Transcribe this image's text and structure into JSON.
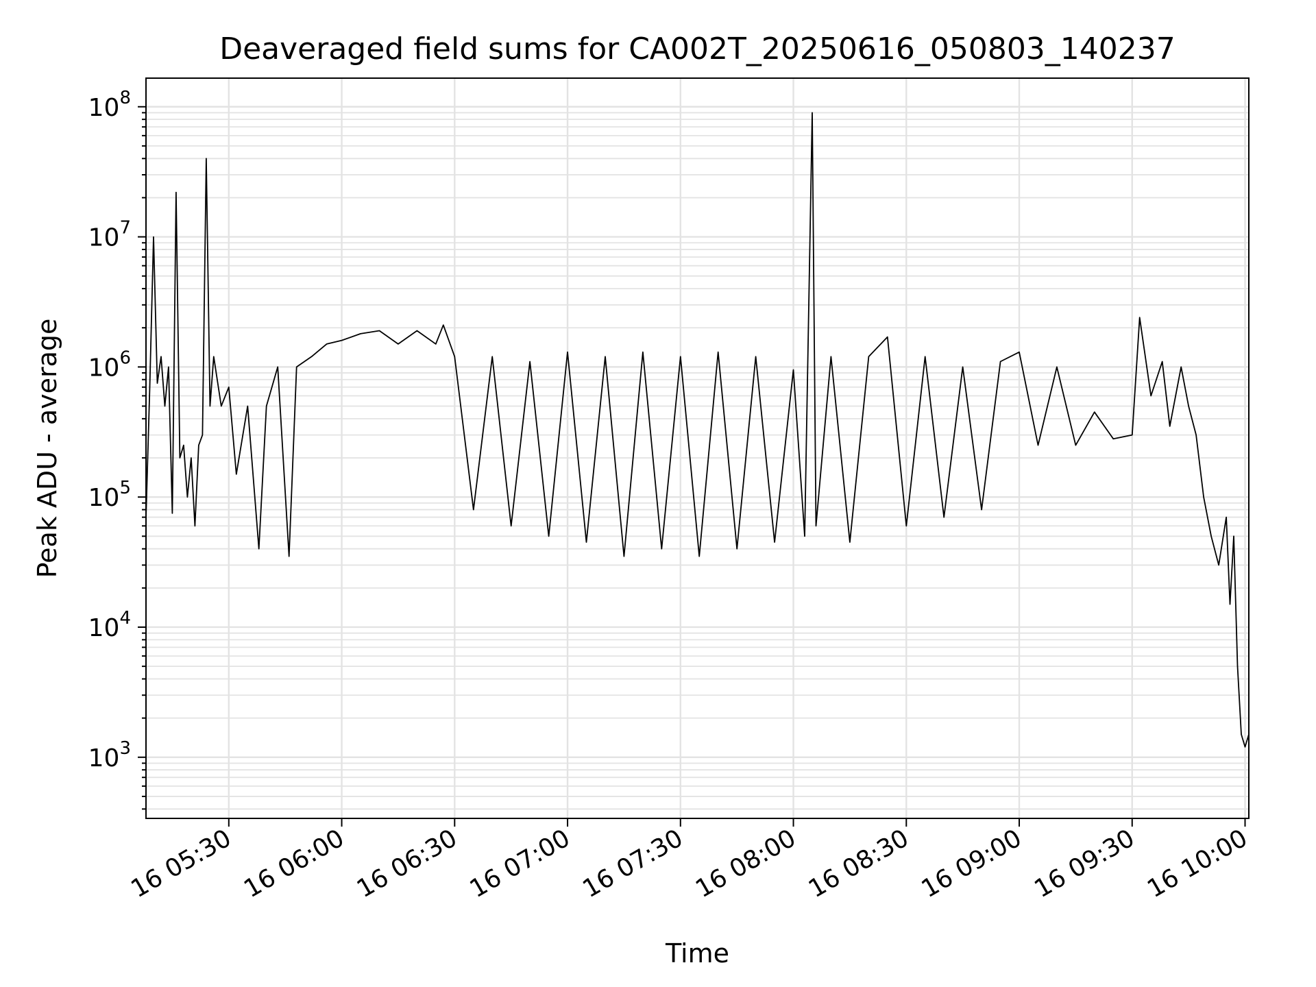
{
  "chart_data": {
    "type": "line",
    "title": "Deaveraged field sums for CA002T_20250616_050803_140237",
    "xlabel": "Time",
    "ylabel": "Peak ADU - average",
    "yscale": "log",
    "grid": true,
    "line_color": "#000000",
    "grid_color": "#e3e3e3",
    "xlim": [
      "16 05:08",
      "16 10:01"
    ],
    "ylim_exponent": [
      2.53,
      8.22
    ],
    "x_ticks": [
      "16 05:30",
      "16 06:00",
      "16 06:30",
      "16 07:00",
      "16 07:30",
      "16 08:00",
      "16 08:30",
      "16 09:00",
      "16 09:30",
      "16 10:00"
    ],
    "y_ticks": [
      {
        "base": "10",
        "exp": "3"
      },
      {
        "base": "10",
        "exp": "4"
      },
      {
        "base": "10",
        "exp": "5"
      },
      {
        "base": "10",
        "exp": "6"
      },
      {
        "base": "10",
        "exp": "7"
      },
      {
        "base": "10",
        "exp": "8"
      }
    ],
    "series": [
      {
        "x": [
          "16 05:08",
          "16 05:09",
          "16 05:10",
          "16 05:11",
          "16 05:12",
          "16 05:13",
          "16 05:14",
          "16 05:15",
          "16 05:16",
          "16 05:17",
          "16 05:18",
          "16 05:19",
          "16 05:20",
          "16 05:21",
          "16 05:22",
          "16 05:23",
          "16 05:24",
          "16 05:25",
          "16 05:26",
          "16 05:28",
          "16 05:30",
          "16 05:32",
          "16 05:35",
          "16 05:38",
          "16 05:40",
          "16 05:43",
          "16 05:46",
          "16 05:48",
          "16 05:52",
          "16 05:56",
          "16 06:00",
          "16 06:05",
          "16 06:10",
          "16 06:15",
          "16 06:20",
          "16 06:25",
          "16 06:27",
          "16 06:30",
          "16 06:35",
          "16 06:40",
          "16 06:45",
          "16 06:50",
          "16 06:55",
          "16 07:00",
          "16 07:05",
          "16 07:10",
          "16 07:15",
          "16 07:20",
          "16 07:25",
          "16 07:30",
          "16 07:35",
          "16 07:40",
          "16 07:45",
          "16 07:50",
          "16 07:55",
          "16 08:00",
          "16 08:03",
          "16 08:05",
          "16 08:06",
          "16 08:10",
          "16 08:15",
          "16 08:20",
          "16 08:25",
          "16 08:30",
          "16 08:35",
          "16 08:40",
          "16 08:45",
          "16 08:50",
          "16 08:55",
          "16 09:00",
          "16 09:05",
          "16 09:10",
          "16 09:15",
          "16 09:20",
          "16 09:25",
          "16 09:30",
          "16 09:32",
          "16 09:35",
          "16 09:38",
          "16 09:40",
          "16 09:43",
          "16 09:45",
          "16 09:47",
          "16 09:49",
          "16 09:51",
          "16 09:53",
          "16 09:55",
          "16 09:56",
          "16 09:57",
          "16 09:58",
          "16 09:59",
          "16 10:00",
          "16 10:01"
        ],
        "y": [
          70000.0,
          700000.0,
          10000000.0,
          750000.0,
          1200000.0,
          500000.0,
          1000000.0,
          75000.0,
          22000000.0,
          200000.0,
          250000.0,
          100000.0,
          200000.0,
          60000.0,
          250000.0,
          300000.0,
          40000000.0,
          500000.0,
          1200000.0,
          500000.0,
          700000.0,
          150000.0,
          500000.0,
          40000.0,
          500000.0,
          1000000.0,
          35000.0,
          1000000.0,
          1200000.0,
          1500000.0,
          1600000.0,
          1800000.0,
          1900000.0,
          1500000.0,
          1900000.0,
          1500000.0,
          2100000.0,
          1200000.0,
          80000.0,
          1200000.0,
          60000.0,
          1100000.0,
          50000.0,
          1300000.0,
          45000.0,
          1200000.0,
          35000.0,
          1300000.0,
          40000.0,
          1200000.0,
          35000.0,
          1300000.0,
          40000.0,
          1200000.0,
          45000.0,
          950000.0,
          50000.0,
          90000000.0,
          60000.0,
          1200000.0,
          45000.0,
          1200000.0,
          1700000.0,
          60000.0,
          1200000.0,
          70000.0,
          1000000.0,
          80000.0,
          1100000.0,
          1300000.0,
          250000.0,
          1000000.0,
          250000.0,
          450000.0,
          280000.0,
          300000.0,
          2400000.0,
          600000.0,
          1100000.0,
          350000.0,
          1000000.0,
          500000.0,
          300000.0,
          100000.0,
          50000.0,
          30000.0,
          70000.0,
          15000.0,
          50000.0,
          5000.0,
          1500.0,
          1200.0,
          1500.0
        ]
      }
    ]
  }
}
